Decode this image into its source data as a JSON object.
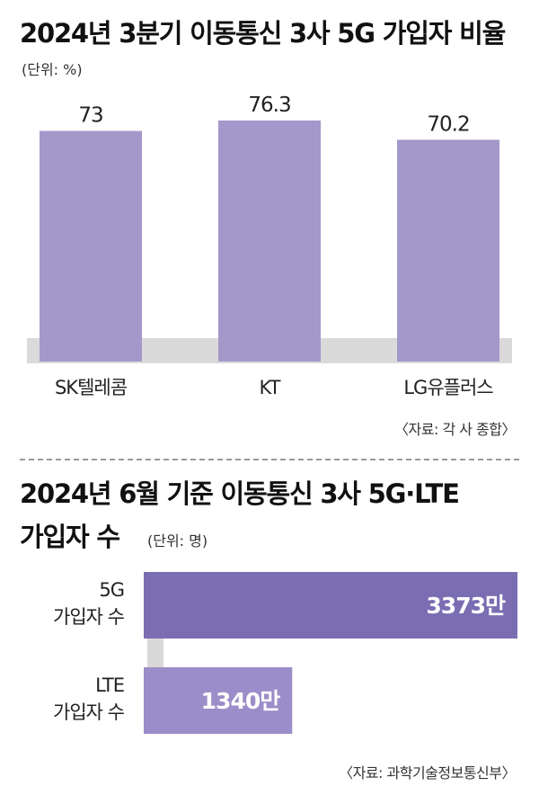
{
  "chart_data": [
    {
      "type": "bar",
      "title": "2024년 3분기 이동통신 3사 5G 가입자 비율",
      "unit": "(단위: %)",
      "categories": [
        "SK텔레콤",
        "KT",
        "LG유플러스"
      ],
      "values": [
        73,
        76.3,
        70.2
      ],
      "value_labels": [
        "73",
        "76.3",
        "70.2"
      ],
      "ylim": [
        0,
        76.3
      ],
      "grid": false,
      "legend": "none",
      "bar_color": "#a498cb",
      "source": "〈자료: 각 사 종합〉"
    },
    {
      "type": "bar",
      "orientation": "horizontal",
      "title_lines": [
        "2024년 6월 기준 이동통신 3사 5G·LTE",
        "가입자 수"
      ],
      "unit": "(단위: 명)",
      "categories": [
        [
          "5G",
          "가입자 수"
        ],
        [
          "LTE",
          "가입자 수"
        ]
      ],
      "values": [
        3373,
        1340
      ],
      "value_labels": [
        "3373만",
        "1340만"
      ],
      "xlim": [
        0,
        3373
      ],
      "grid": false,
      "legend": "none",
      "bar_colors": [
        "#7b6db2",
        "#9b8dc9"
      ],
      "source": "〈자료: 과학기술정보통신부〉"
    }
  ]
}
